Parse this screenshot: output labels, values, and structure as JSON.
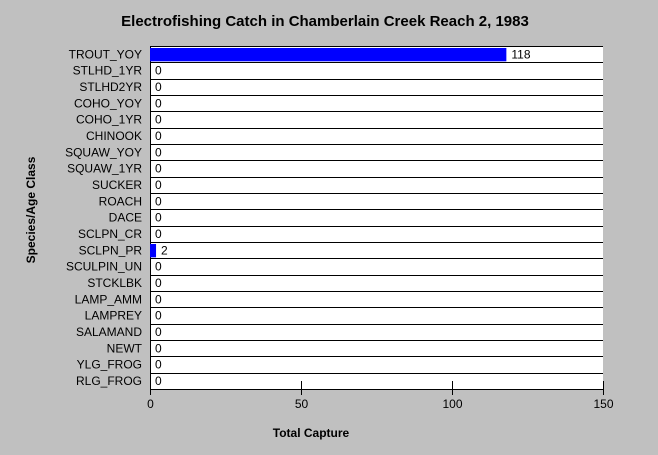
{
  "chart_data": {
    "type": "bar",
    "orientation": "horizontal",
    "title": "Electrofishing Catch in Chamberlain Creek Reach 2, 1983",
    "x_label": "Total Capture",
    "y_label": "Species/Age Class",
    "categories": [
      "TROUT_YOY",
      "STLHD_1YR",
      "STLHD2YR",
      "COHO_YOY",
      "COHO_1YR",
      "CHINOOK",
      "SQUAW_YOY",
      "SQUAW_1YR",
      "SUCKER",
      "ROACH",
      "DACE",
      "SCLPN_CR",
      "SCLPN_PR",
      "SCULPIN_UN",
      "STCKLBK",
      "LAMP_AMM",
      "LAMPREY",
      "SALAMAND",
      "NEWT",
      "YLG_FROG",
      "RLG_FROG"
    ],
    "values": [
      118,
      0,
      0,
      0,
      0,
      0,
      0,
      0,
      0,
      0,
      0,
      0,
      2,
      0,
      0,
      0,
      0,
      0,
      0,
      0,
      0
    ],
    "color": "#0000ff",
    "xlim": [
      0,
      150
    ],
    "xticks": [
      0,
      50,
      100,
      150
    ]
  }
}
